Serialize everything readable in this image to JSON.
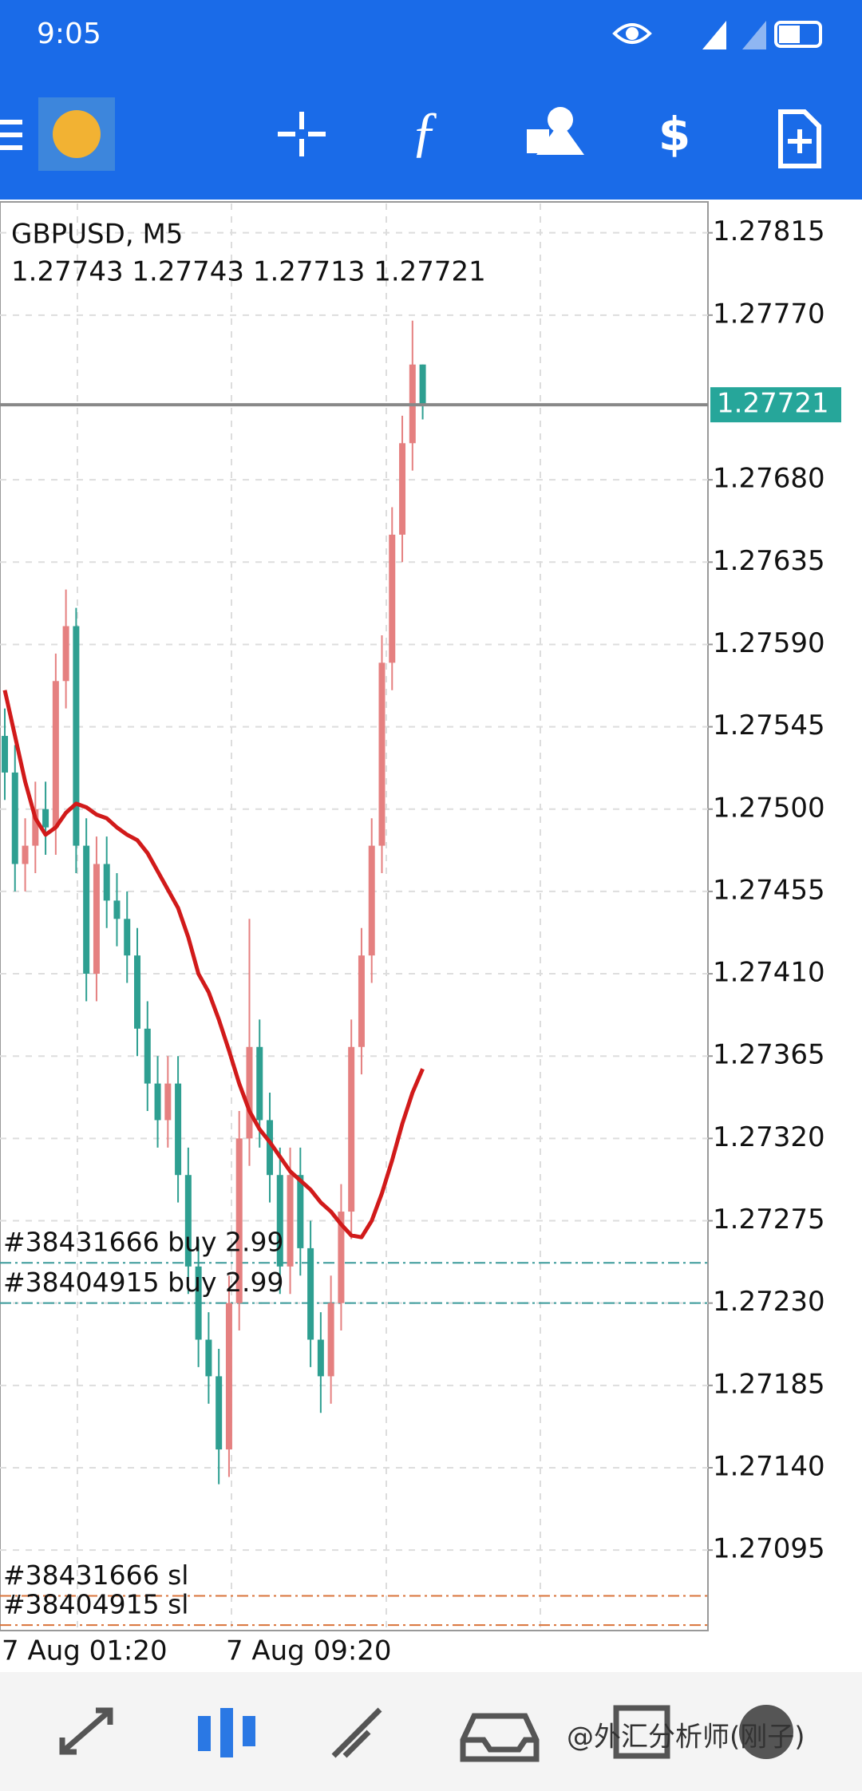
{
  "status_bar": {
    "time": "9:05"
  },
  "chart_data": {
    "type": "candlestick",
    "title": "GBPUSD, M5",
    "subtitle": "1.27743 1.27743 1.27713 1.27721",
    "up_color": "#e58080",
    "down_color": "#2e9f91",
    "categories": [
      "7 Aug 01:20",
      null,
      null,
      null,
      null,
      null,
      null,
      null,
      null,
      null,
      null,
      null,
      null,
      null,
      null,
      null,
      null,
      null,
      null,
      null,
      null,
      null,
      "7 Aug 09:20",
      null,
      null,
      null,
      null,
      null,
      null,
      null,
      null,
      null,
      null,
      null,
      null,
      null,
      null,
      null,
      null,
      null,
      null,
      null
    ],
    "open": [
      1.2754,
      1.2752,
      1.2747,
      1.2748,
      1.275,
      1.2749,
      1.2757,
      1.276,
      1.2748,
      1.2741,
      1.2747,
      1.2745,
      1.2744,
      1.2742,
      1.2738,
      1.2735,
      1.2733,
      1.2735,
      1.273,
      1.2725,
      1.2721,
      1.2719,
      1.2715,
      1.2723,
      1.2732,
      1.2737,
      1.2733,
      1.273,
      1.2725,
      1.273,
      1.2726,
      1.2721,
      1.2719,
      1.2723,
      1.2728,
      1.2737,
      1.2742,
      1.2748,
      1.2758,
      1.2765,
      1.277,
      1.27743
    ],
    "high": [
      1.27555,
      1.27535,
      1.27495,
      1.27515,
      1.27515,
      1.27585,
      1.2762,
      1.2761,
      1.27495,
      1.27485,
      1.27485,
      1.27465,
      1.27455,
      1.27435,
      1.27395,
      1.27365,
      1.27365,
      1.27365,
      1.27315,
      1.27265,
      1.27225,
      1.27205,
      1.27245,
      1.27335,
      1.2744,
      1.27385,
      1.27345,
      1.27315,
      1.27315,
      1.27315,
      1.27275,
      1.27225,
      1.27245,
      1.27295,
      1.27385,
      1.27435,
      1.27495,
      1.27595,
      1.27665,
      1.27715,
      1.27767,
      1.27743
    ],
    "low": [
      1.27505,
      1.27455,
      1.27455,
      1.27465,
      1.27475,
      1.27475,
      1.27555,
      1.27465,
      1.27395,
      1.27395,
      1.27435,
      1.27425,
      1.27405,
      1.27365,
      1.27335,
      1.27315,
      1.27315,
      1.27285,
      1.27235,
      1.27195,
      1.27175,
      1.27131,
      1.27135,
      1.27215,
      1.27305,
      1.27315,
      1.27285,
      1.27235,
      1.27235,
      1.27245,
      1.27195,
      1.2717,
      1.27175,
      1.27215,
      1.27265,
      1.27355,
      1.27405,
      1.27465,
      1.27565,
      1.27635,
      1.27685,
      1.27713
    ],
    "close": [
      1.2752,
      1.2747,
      1.2748,
      1.275,
      1.2749,
      1.2757,
      1.276,
      1.2748,
      1.2741,
      1.2747,
      1.2745,
      1.2744,
      1.2742,
      1.2738,
      1.2735,
      1.2733,
      1.2735,
      1.273,
      1.2725,
      1.2721,
      1.2719,
      1.2715,
      1.2723,
      1.2732,
      1.2737,
      1.2733,
      1.273,
      1.2725,
      1.273,
      1.2726,
      1.2721,
      1.2719,
      1.2723,
      1.2728,
      1.2737,
      1.2742,
      1.2748,
      1.2758,
      1.2765,
      1.277,
      1.27743,
      1.27721
    ],
    "ma": {
      "color": "#d11a1a",
      "values": [
        1.27565,
        1.2754,
        1.27515,
        1.27495,
        1.27486,
        1.2749,
        1.27498,
        1.27503,
        1.27501,
        1.27497,
        1.27495,
        1.2749,
        1.27486,
        1.27483,
        1.27476,
        1.27466,
        1.27456,
        1.27446,
        1.2743,
        1.2741,
        1.274,
        1.27385,
        1.27368,
        1.2735,
        1.27335,
        1.27325,
        1.27318,
        1.2731,
        1.27302,
        1.27297,
        1.27292,
        1.27285,
        1.2728,
        1.27273,
        1.27267,
        1.27266,
        1.27275,
        1.2729,
        1.27308,
        1.27328,
        1.27345,
        1.27358
      ]
    },
    "last_price": 1.27721,
    "last_price_color": "#26a69a",
    "orders": [
      {
        "label": "#38431666 buy 2.99",
        "price": 1.27252
      },
      {
        "label": "#38404915 buy 2.99",
        "price": 1.2723
      }
    ],
    "order_color": "#3a9a9a",
    "stop_losses": [
      {
        "label": "#38431666 sl",
        "price": 1.2707
      },
      {
        "label": "#38404915 sl",
        "price": 1.27054
      }
    ],
    "sl_color": "#d9733a",
    "ylim": [
      1.27051,
      1.27831
    ],
    "yticks": [
      1.27815,
      {
        "value": 1.2777,
        "label": "1.27770"
      },
      {
        "value": 1.2768,
        "label": "1.27680"
      },
      1.27635,
      {
        "value": 1.2759,
        "label": "1.27590"
      },
      1.27545,
      {
        "value": 1.275,
        "label": "1.27500"
      },
      1.27455,
      {
        "value": 1.2741,
        "label": "1.27410"
      },
      1.27365,
      {
        "value": 1.2732,
        "label": "1.27320"
      },
      1.27275,
      {
        "value": 1.2723,
        "label": "1.27230"
      },
      1.27185,
      {
        "value": 1.2714,
        "label": "1.27140"
      },
      1.27095
    ],
    "grid": true
  },
  "watermark": "@外汇分析师(刚子)"
}
